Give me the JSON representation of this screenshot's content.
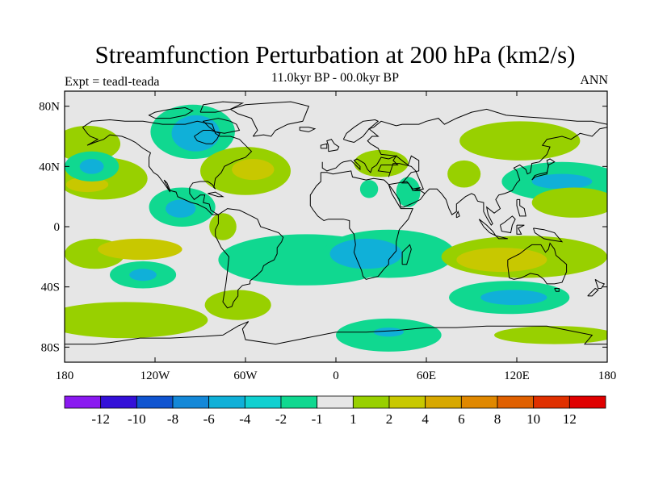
{
  "title": "Streamfunction Perturbation at 200 hPa (km2/s)",
  "subtitle": "11.0kyr BP - 00.0kyr BP",
  "experiment": "Expt = teadl-teada",
  "season": "ANN",
  "map": {
    "background_color": "#e6e6e6",
    "lat_ticks": [
      "80N",
      "40N",
      "0",
      "40S",
      "80S"
    ],
    "lon_ticks": [
      "180",
      "120W",
      "60W",
      "0",
      "60E",
      "120E",
      "180"
    ],
    "lon_range": [
      -180,
      180
    ],
    "lat_range": [
      -90,
      90
    ]
  },
  "colorbar": {
    "colors": [
      "#8a19f0",
      "#3410d8",
      "#1054d0",
      "#1488d8",
      "#10b0d8",
      "#10d0d0",
      "#10d890",
      "#e6e6e6",
      "#98d000",
      "#c8c800",
      "#d8a800",
      "#e08800",
      "#e06000",
      "#e03000",
      "#e00000"
    ],
    "labels": [
      "-12",
      "-10",
      "-8",
      "-6",
      "-4",
      "-2",
      "-1",
      "1",
      "2",
      "4",
      "6",
      "8",
      "10",
      "12"
    ]
  },
  "anomaly_fields": [
    {
      "level": 1,
      "color": "#98d000",
      "lon": -165,
      "lat": 55,
      "rx": 22,
      "ry": 12
    },
    {
      "level": 1,
      "color": "#98d000",
      "lon": -155,
      "lat": 32,
      "rx": 30,
      "ry": 14
    },
    {
      "level": 2,
      "color": "#c8c800",
      "lon": -165,
      "lat": 28,
      "rx": 14,
      "ry": 5
    },
    {
      "level": -1,
      "color": "#10d890",
      "lon": -162,
      "lat": 40,
      "rx": 18,
      "ry": 10
    },
    {
      "level": -2,
      "color": "#10b0d8",
      "lon": -162,
      "lat": 40,
      "rx": 8,
      "ry": 5
    },
    {
      "level": -1,
      "color": "#10d890",
      "lon": -95,
      "lat": 63,
      "rx": 28,
      "ry": 18
    },
    {
      "level": -2,
      "color": "#10b0d8",
      "lon": -93,
      "lat": 62,
      "rx": 16,
      "ry": 12
    },
    {
      "level": -1,
      "color": "#10d890",
      "lon": -102,
      "lat": 13,
      "rx": 22,
      "ry": 13
    },
    {
      "level": -2,
      "color": "#10b0d8",
      "lon": -103,
      "lat": 12,
      "rx": 10,
      "ry": 6
    },
    {
      "level": 1,
      "color": "#98d000",
      "lon": -60,
      "lat": 37,
      "rx": 30,
      "ry": 16
    },
    {
      "level": 2,
      "color": "#c8c800",
      "lon": -55,
      "lat": 38,
      "rx": 14,
      "ry": 7
    },
    {
      "level": 1,
      "color": "#98d000",
      "lon": -160,
      "lat": -18,
      "rx": 20,
      "ry": 10
    },
    {
      "level": 2,
      "color": "#c8c800",
      "lon": -130,
      "lat": -15,
      "rx": 28,
      "ry": 7
    },
    {
      "level": 1,
      "color": "#98d000",
      "lon": -140,
      "lat": -62,
      "rx": 55,
      "ry": 12
    },
    {
      "level": -1,
      "color": "#10d890",
      "lon": -128,
      "lat": -32,
      "rx": 22,
      "ry": 9
    },
    {
      "level": -2,
      "color": "#10b0d8",
      "lon": -128,
      "lat": -32,
      "rx": 9,
      "ry": 4
    },
    {
      "level": 1,
      "color": "#98d000",
      "lon": -75,
      "lat": 0,
      "rx": 9,
      "ry": 9
    },
    {
      "level": 1,
      "color": "#98d000",
      "lon": -65,
      "lat": -52,
      "rx": 22,
      "ry": 10
    },
    {
      "level": -1,
      "color": "#10d890",
      "lon": -20,
      "lat": -22,
      "rx": 58,
      "ry": 17
    },
    {
      "level": -1,
      "color": "#10d890",
      "lon": 35,
      "lat": -18,
      "rx": 44,
      "ry": 16
    },
    {
      "level": -2,
      "color": "#10b0d8",
      "lon": 20,
      "lat": -18,
      "rx": 24,
      "ry": 10
    },
    {
      "level": -1,
      "color": "#10d890",
      "lon": 35,
      "lat": -72,
      "rx": 35,
      "ry": 11
    },
    {
      "level": -2,
      "color": "#10b0d8",
      "lon": 35,
      "lat": -70,
      "rx": 10,
      "ry": 3
    },
    {
      "level": 1,
      "color": "#98d000",
      "lon": 30,
      "lat": 42,
      "rx": 18,
      "ry": 9
    },
    {
      "level": -1,
      "color": "#10d890",
      "lon": 22,
      "lat": 25,
      "rx": 6,
      "ry": 6
    },
    {
      "level": -1,
      "color": "#10d890",
      "lon": 48,
      "lat": 23,
      "rx": 8,
      "ry": 10
    },
    {
      "level": 1,
      "color": "#98d000",
      "lon": 85,
      "lat": 35,
      "rx": 11,
      "ry": 9
    },
    {
      "level": 1,
      "color": "#98d000",
      "lon": 122,
      "lat": 57,
      "rx": 40,
      "ry": 13
    },
    {
      "level": -1,
      "color": "#10d890",
      "lon": 150,
      "lat": 30,
      "rx": 40,
      "ry": 13
    },
    {
      "level": -2,
      "color": "#10b0d8",
      "lon": 150,
      "lat": 30,
      "rx": 20,
      "ry": 5
    },
    {
      "level": 1,
      "color": "#98d000",
      "lon": 158,
      "lat": 16,
      "rx": 28,
      "ry": 10
    },
    {
      "level": 1,
      "color": "#98d000",
      "lon": 125,
      "lat": -20,
      "rx": 55,
      "ry": 14
    },
    {
      "level": 2,
      "color": "#c8c800",
      "lon": 110,
      "lat": -22,
      "rx": 30,
      "ry": 8
    },
    {
      "level": -1,
      "color": "#10d890",
      "lon": 115,
      "lat": -47,
      "rx": 40,
      "ry": 11
    },
    {
      "level": -2,
      "color": "#10b0d8",
      "lon": 118,
      "lat": -47,
      "rx": 22,
      "ry": 5
    },
    {
      "level": 1,
      "color": "#98d000",
      "lon": 145,
      "lat": -72,
      "rx": 40,
      "ry": 6
    }
  ]
}
